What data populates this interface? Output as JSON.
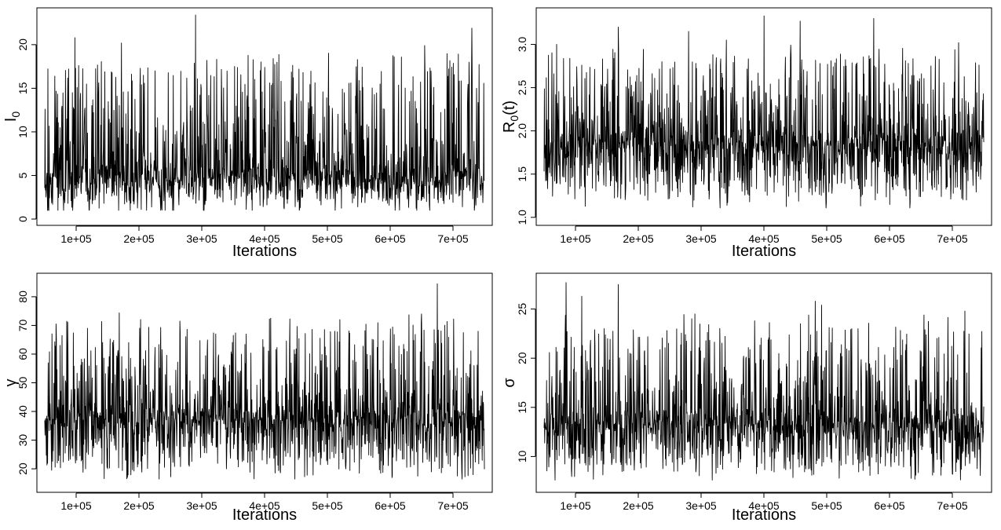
{
  "chart_data": [
    {
      "type": "line",
      "xlabel": "Iterations",
      "ylabel": "I",
      "ylabel_sub": "0",
      "ylabel_tail": "",
      "x_ticks": [
        100000,
        200000,
        300000,
        400000,
        500000,
        600000,
        700000
      ],
      "x_tick_labels": [
        "1e+05",
        "2e+05",
        "3e+05",
        "4e+05",
        "5e+05",
        "6e+05",
        "7e+05"
      ],
      "y_ticks": [
        0,
        5,
        10,
        15,
        20
      ],
      "y_tick_labels": [
        "0",
        "5",
        "10",
        "15",
        "20"
      ],
      "xlim": [
        50000,
        750000
      ],
      "ylim": [
        0,
        23.5
      ],
      "trace": {
        "base": 4.7,
        "low": 0.8,
        "high": 23.4,
        "n_points": 1400,
        "seed": 11
      },
      "series": [
        {
          "x": [
            290000,
            730000,
            98000,
            172000,
            655000,
            548000,
            352000,
            400000,
            455000
          ],
          "y": [
            23.4,
            21.9,
            20.8,
            20.2,
            19.9,
            18.3,
            17.5,
            17.4,
            17.2
          ]
        }
      ]
    },
    {
      "type": "line",
      "xlabel": "Iterations",
      "ylabel": "R",
      "ylabel_sub": "0",
      "ylabel_tail": "(t)",
      "x_ticks": [
        100000,
        200000,
        300000,
        400000,
        500000,
        600000,
        700000
      ],
      "x_tick_labels": [
        "1e+05",
        "2e+05",
        "3e+05",
        "4e+05",
        "5e+05",
        "6e+05",
        "7e+05"
      ],
      "y_ticks": [
        1.0,
        1.5,
        2.0,
        2.5,
        3.0
      ],
      "y_tick_labels": [
        "1.0",
        "1.5",
        "2.0",
        "2.5",
        "3.0"
      ],
      "xlim": [
        50000,
        750000
      ],
      "ylim": [
        0.98,
        3.35
      ],
      "trace": {
        "base": 1.85,
        "low": 1.07,
        "high": 3.33,
        "n_points": 1400,
        "seed": 23
      },
      "series": [
        {
          "x": [
            400000,
            575000,
            458000,
            168000,
            280000,
            710000,
            70000,
            340000
          ],
          "y": [
            3.33,
            3.3,
            3.27,
            3.2,
            3.15,
            3.02,
            3.0,
            3.05
          ]
        }
      ]
    },
    {
      "type": "line",
      "xlabel": "Iterations",
      "ylabel": "γ",
      "ylabel_sub": "",
      "ylabel_tail": "",
      "x_ticks": [
        100000,
        200000,
        300000,
        400000,
        500000,
        600000,
        700000
      ],
      "x_tick_labels": [
        "1e+05",
        "2e+05",
        "3e+05",
        "4e+05",
        "5e+05",
        "6e+05",
        "7e+05"
      ],
      "y_ticks": [
        20,
        30,
        40,
        50,
        60,
        70,
        80
      ],
      "y_tick_labels": [
        "20",
        "30",
        "40",
        "50",
        "60",
        "70",
        "80"
      ],
      "xlim": [
        50000,
        750000
      ],
      "ylim": [
        14,
        86
      ],
      "trace": {
        "base": 38,
        "low": 15.3,
        "high": 84.5,
        "n_points": 1400,
        "seed": 37
      },
      "series": [
        {
          "x": [
            675000,
            410000,
            520000,
            650000,
            68000,
            265000,
            740000,
            585000
          ],
          "y": [
            84.5,
            72.5,
            72.0,
            74.0,
            70.5,
            71.5,
            68.0,
            18.5
          ]
        }
      ]
    },
    {
      "type": "line",
      "xlabel": "Iterations",
      "ylabel": "σ",
      "ylabel_sub": "",
      "ylabel_tail": "",
      "x_ticks": [
        100000,
        200000,
        300000,
        400000,
        500000,
        600000,
        700000
      ],
      "x_tick_labels": [
        "1e+05",
        "2e+05",
        "3e+05",
        "4e+05",
        "5e+05",
        "6e+05",
        "7e+05"
      ],
      "y_ticks": [
        10,
        15,
        20,
        25
      ],
      "y_tick_labels": [
        "10",
        "15",
        "20",
        "25"
      ],
      "xlim": [
        50000,
        750000
      ],
      "ylim": [
        7,
        28
      ],
      "trace": {
        "base": 13.5,
        "low": 7.3,
        "high": 27.7,
        "n_points": 1400,
        "seed": 53
      },
      "series": [
        {
          "x": [
            85000,
            168000,
            482000,
            492000,
            290000,
            720000,
            110000,
            540000
          ],
          "y": [
            27.7,
            27.5,
            25.8,
            25.4,
            24.5,
            24.8,
            26.3,
            23.0
          ]
        }
      ]
    }
  ]
}
